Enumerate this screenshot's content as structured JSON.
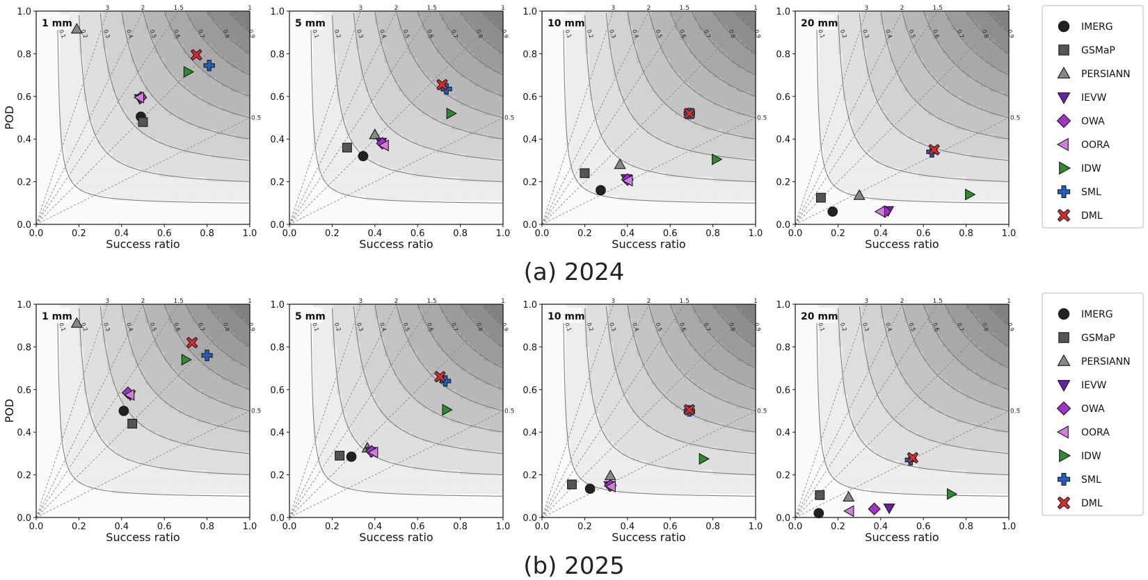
{
  "captions": [
    "(a) 2024",
    "(b) 2025"
  ],
  "chart_data": {
    "type": "scatter",
    "subtype": "performance_diagram",
    "xlabel": "Success ratio",
    "ylabel": "POD",
    "xlim": [
      0,
      1
    ],
    "ylim": [
      0,
      1
    ],
    "ticks": [
      "0.0",
      "0.2",
      "0.4",
      "0.6",
      "0.8",
      "1.0"
    ],
    "csi_contours": [
      0.1,
      0.2,
      0.3,
      0.4,
      0.5,
      0.6,
      0.7,
      0.8,
      0.9
    ],
    "csi_labels": [
      "0.1",
      "0.2",
      "0.3",
      "0.4",
      "0.5",
      "0.6",
      "0.7",
      "0.8",
      "0.9"
    ],
    "bias_lines": [
      {
        "value": 3,
        "label": "3"
      },
      {
        "value": 2,
        "label": "2"
      },
      {
        "value": 1.5,
        "label": "1.5"
      },
      {
        "value": 1,
        "label": "1"
      },
      {
        "value": 0.5,
        "label": "0.5"
      }
    ],
    "legend": {
      "position": "right",
      "entries": [
        {
          "name": "IMERG",
          "marker": "circle",
          "color": "#222222"
        },
        {
          "name": "GSMaP",
          "marker": "square",
          "color": "#555555"
        },
        {
          "name": "PERSIANN",
          "marker": "triangle-up",
          "color": "#888888"
        },
        {
          "name": "IEVW",
          "marker": "triangle-down",
          "color": "#6a1fa8"
        },
        {
          "name": "OWA",
          "marker": "diamond",
          "color": "#a330c9"
        },
        {
          "name": "OORA",
          "marker": "triangle-left",
          "color": "#d07ce0"
        },
        {
          "name": "IDW",
          "marker": "triangle-right",
          "color": "#2e8a2e"
        },
        {
          "name": "SML",
          "marker": "plus",
          "color": "#1f5fbf"
        },
        {
          "name": "DML",
          "marker": "x",
          "color": "#d62c2c"
        }
      ]
    },
    "panels": [
      {
        "row": 0,
        "col": 0,
        "threshold": "1 mm",
        "points": [
          {
            "s": "IMERG",
            "x": 0.49,
            "y": 0.505
          },
          {
            "s": "GSMaP",
            "x": 0.5,
            "y": 0.48
          },
          {
            "s": "PERSIANN",
            "x": 0.19,
            "y": 0.915
          },
          {
            "s": "IEVW",
            "x": 0.485,
            "y": 0.59
          },
          {
            "s": "OWA",
            "x": 0.49,
            "y": 0.595
          },
          {
            "s": "OORA",
            "x": 0.485,
            "y": 0.595
          },
          {
            "s": "IDW",
            "x": 0.71,
            "y": 0.715
          },
          {
            "s": "SML",
            "x": 0.81,
            "y": 0.745
          },
          {
            "s": "DML",
            "x": 0.75,
            "y": 0.795
          }
        ]
      },
      {
        "row": 0,
        "col": 1,
        "threshold": "5 mm",
        "points": [
          {
            "s": "IMERG",
            "x": 0.345,
            "y": 0.32
          },
          {
            "s": "GSMaP",
            "x": 0.27,
            "y": 0.36
          },
          {
            "s": "PERSIANN",
            "x": 0.4,
            "y": 0.42
          },
          {
            "s": "IEVW",
            "x": 0.43,
            "y": 0.385
          },
          {
            "s": "OWA",
            "x": 0.435,
            "y": 0.38
          },
          {
            "s": "OORA",
            "x": 0.445,
            "y": 0.37
          },
          {
            "s": "IDW",
            "x": 0.755,
            "y": 0.52
          },
          {
            "s": "SML",
            "x": 0.735,
            "y": 0.635
          },
          {
            "s": "DML",
            "x": 0.715,
            "y": 0.655
          }
        ]
      },
      {
        "row": 0,
        "col": 2,
        "threshold": "10 mm",
        "points": [
          {
            "s": "IMERG",
            "x": 0.275,
            "y": 0.16
          },
          {
            "s": "GSMaP",
            "x": 0.2,
            "y": 0.24
          },
          {
            "s": "PERSIANN",
            "x": 0.365,
            "y": 0.28
          },
          {
            "s": "IEVW",
            "x": 0.395,
            "y": 0.215
          },
          {
            "s": "OWA",
            "x": 0.4,
            "y": 0.21
          },
          {
            "s": "OORA",
            "x": 0.405,
            "y": 0.205
          },
          {
            "s": "IDW",
            "x": 0.815,
            "y": 0.305
          },
          {
            "s": "SML",
            "x": 0.69,
            "y": 0.52
          },
          {
            "s": "DML",
            "x": 0.69,
            "y": 0.52
          }
        ]
      },
      {
        "row": 0,
        "col": 3,
        "threshold": "20 mm",
        "points": [
          {
            "s": "IMERG",
            "x": 0.175,
            "y": 0.06
          },
          {
            "s": "GSMaP",
            "x": 0.12,
            "y": 0.125
          },
          {
            "s": "PERSIANN",
            "x": 0.3,
            "y": 0.135
          },
          {
            "s": "IEVW",
            "x": 0.435,
            "y": 0.065
          },
          {
            "s": "OWA",
            "x": 0.42,
            "y": 0.06
          },
          {
            "s": "OORA",
            "x": 0.4,
            "y": 0.06
          },
          {
            "s": "IDW",
            "x": 0.815,
            "y": 0.14
          },
          {
            "s": "SML",
            "x": 0.64,
            "y": 0.34
          },
          {
            "s": "DML",
            "x": 0.65,
            "y": 0.35
          }
        ]
      },
      {
        "row": 1,
        "col": 0,
        "threshold": "1 mm",
        "points": [
          {
            "s": "IMERG",
            "x": 0.41,
            "y": 0.5
          },
          {
            "s": "GSMaP",
            "x": 0.45,
            "y": 0.44
          },
          {
            "s": "PERSIANN",
            "x": 0.19,
            "y": 0.91
          },
          {
            "s": "IEVW",
            "x": 0.44,
            "y": 0.575
          },
          {
            "s": "OWA",
            "x": 0.43,
            "y": 0.585
          },
          {
            "s": "OORA",
            "x": 0.44,
            "y": 0.575
          },
          {
            "s": "IDW",
            "x": 0.7,
            "y": 0.74
          },
          {
            "s": "SML",
            "x": 0.8,
            "y": 0.76
          },
          {
            "s": "DML",
            "x": 0.73,
            "y": 0.82
          }
        ]
      },
      {
        "row": 1,
        "col": 1,
        "threshold": "5 mm",
        "points": [
          {
            "s": "IMERG",
            "x": 0.29,
            "y": 0.285
          },
          {
            "s": "GSMaP",
            "x": 0.235,
            "y": 0.29
          },
          {
            "s": "PERSIANN",
            "x": 0.365,
            "y": 0.325
          },
          {
            "s": "IEVW",
            "x": 0.38,
            "y": 0.31
          },
          {
            "s": "OWA",
            "x": 0.385,
            "y": 0.31
          },
          {
            "s": "OORA",
            "x": 0.395,
            "y": 0.305
          },
          {
            "s": "IDW",
            "x": 0.735,
            "y": 0.505
          },
          {
            "s": "SML",
            "x": 0.73,
            "y": 0.64
          },
          {
            "s": "DML",
            "x": 0.705,
            "y": 0.66
          }
        ]
      },
      {
        "row": 1,
        "col": 2,
        "threshold": "10 mm",
        "points": [
          {
            "s": "IMERG",
            "x": 0.225,
            "y": 0.135
          },
          {
            "s": "GSMaP",
            "x": 0.14,
            "y": 0.155
          },
          {
            "s": "PERSIANN",
            "x": 0.32,
            "y": 0.195
          },
          {
            "s": "IEVW",
            "x": 0.315,
            "y": 0.15
          },
          {
            "s": "OWA",
            "x": 0.32,
            "y": 0.15
          },
          {
            "s": "OORA",
            "x": 0.325,
            "y": 0.145
          },
          {
            "s": "IDW",
            "x": 0.755,
            "y": 0.275
          },
          {
            "s": "SML",
            "x": 0.69,
            "y": 0.5
          },
          {
            "s": "DML",
            "x": 0.69,
            "y": 0.505
          }
        ]
      },
      {
        "row": 1,
        "col": 3,
        "threshold": "20 mm",
        "points": [
          {
            "s": "IMERG",
            "x": 0.11,
            "y": 0.02
          },
          {
            "s": "GSMaP",
            "x": 0.115,
            "y": 0.105
          },
          {
            "s": "PERSIANN",
            "x": 0.25,
            "y": 0.095
          },
          {
            "s": "IEVW",
            "x": 0.44,
            "y": 0.045
          },
          {
            "s": "OWA",
            "x": 0.37,
            "y": 0.04
          },
          {
            "s": "OORA",
            "x": 0.255,
            "y": 0.03
          },
          {
            "s": "IDW",
            "x": 0.73,
            "y": 0.11
          },
          {
            "s": "SML",
            "x": 0.54,
            "y": 0.27
          },
          {
            "s": "DML",
            "x": 0.55,
            "y": 0.28
          }
        ]
      }
    ]
  }
}
